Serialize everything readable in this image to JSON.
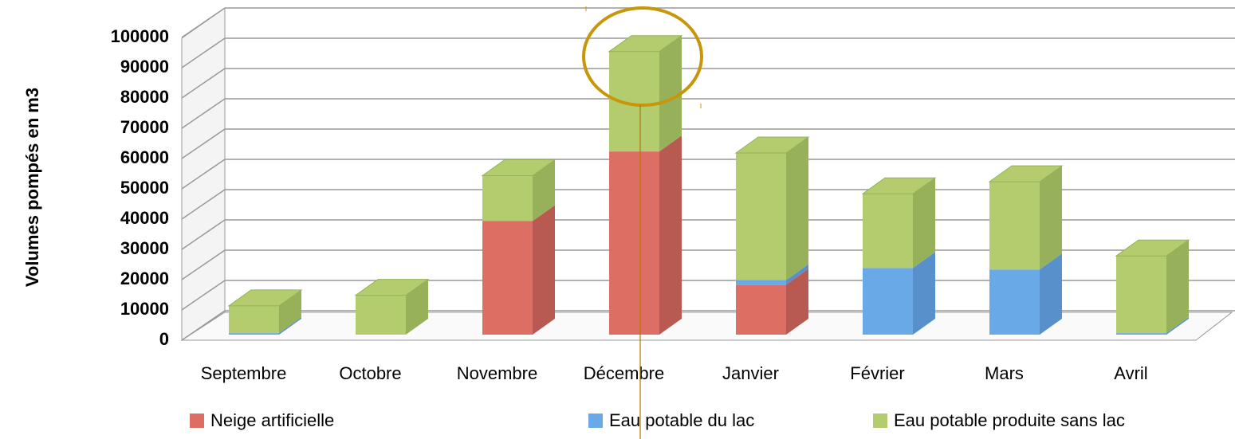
{
  "chart_data": {
    "type": "bar3d_stacked",
    "y_label": "Volumes pompés en m3",
    "categories": [
      "Septembre",
      "Octobre",
      "Novembre",
      "Décembre",
      "Janvier",
      "Février",
      "Mars",
      "Avril"
    ],
    "series": [
      {
        "name": "Neige artificielle",
        "color": "#dc6e64",
        "side": "#b85a51",
        "values": [
          0,
          0,
          37500,
          60500,
          16500,
          0,
          0,
          0
        ]
      },
      {
        "name": "Eau potable du lac",
        "color": "#6aa9e8",
        "side": "#5890cc",
        "values": [
          500,
          0,
          0,
          0,
          1500,
          22000,
          21500,
          500
        ]
      },
      {
        "name": "Eau potable produite sans lac",
        "color": "#b3cc6e",
        "side": "#97b05a",
        "values": [
          9000,
          13000,
          15000,
          33000,
          42000,
          24500,
          29000,
          25500
        ]
      }
    ],
    "ylim": [
      0,
      100000
    ],
    "yticks": [
      0,
      10000,
      20000,
      30000,
      40000,
      50000,
      60000,
      70000,
      80000,
      90000,
      100000
    ],
    "grid": true
  }
}
